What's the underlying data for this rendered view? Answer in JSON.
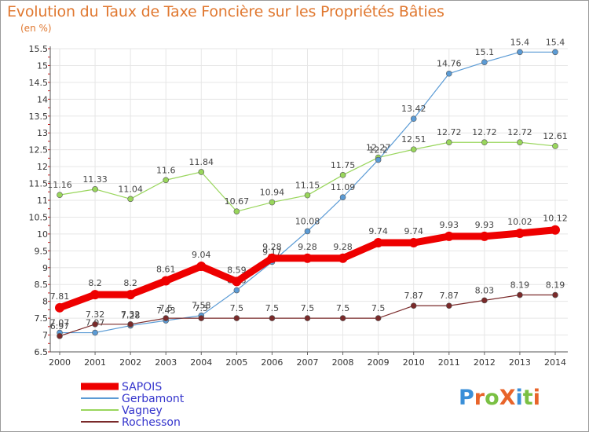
{
  "title": "Evolution du Taux de Taxe Foncière sur les Propriétés Bâties",
  "unit": "(en %)",
  "logo": {
    "text": "ProXiti",
    "letter_colors": [
      "#3a8fd8",
      "#e8642a",
      "#7ac043",
      "#e8642a",
      "#3a8fd8",
      "#7ac043",
      "#e8642a"
    ]
  },
  "chart_data": {
    "type": "line",
    "x": [
      "2000",
      "2001",
      "2002",
      "2003",
      "2004",
      "2005",
      "2006",
      "2007",
      "2008",
      "2009",
      "2010",
      "2011",
      "2012",
      "2013",
      "2014"
    ],
    "ylim": [
      6.5,
      15.5
    ],
    "yticks": [
      "6.5",
      "7",
      "7.5",
      "8",
      "8.5",
      "9",
      "9.5",
      "10",
      "10.5",
      "11",
      "11.5",
      "12",
      "12.5",
      "13",
      "13.5",
      "14",
      "14.5",
      "15",
      "15.5"
    ],
    "grid": true,
    "legend_position": "bottom-left",
    "series": [
      {
        "name": "SAPOIS",
        "color": "#ee0000",
        "values": [
          7.81,
          8.2,
          8.2,
          8.61,
          9.04,
          8.59,
          9.28,
          9.28,
          9.28,
          9.74,
          9.74,
          9.93,
          9.93,
          10.02,
          10.12
        ],
        "labels": [
          "7.81",
          "8.2",
          "8.2",
          "8.61",
          "9.04",
          "8.59",
          "9.28",
          "9.28",
          "9.28",
          "9.74",
          "9.74",
          "9.93",
          "9.93",
          "10.02",
          "10.12"
        ]
      },
      {
        "name": "Gerbamont",
        "color": "#5b9bd5",
        "values": [
          7.07,
          7.07,
          7.28,
          7.43,
          7.58,
          8.33,
          9.17,
          10.08,
          11.09,
          12.2,
          13.42,
          14.76,
          15.1,
          15.4,
          15.4
        ],
        "labels": [
          "7.07",
          "7.07",
          "7.28",
          "7.43",
          "7.58",
          "8.33",
          "9.17",
          "10.08",
          "11.09",
          "12.2",
          "13.42",
          "14.76",
          "15.1",
          "15.4",
          "15.4"
        ]
      },
      {
        "name": "Vagney",
        "color": "#99d65c",
        "values": [
          11.16,
          11.33,
          11.04,
          11.6,
          11.84,
          10.67,
          10.94,
          11.15,
          11.75,
          12.27,
          12.51,
          12.72,
          12.72,
          12.72,
          12.61
        ],
        "labels": [
          "11.16",
          "11.33",
          "11.04",
          "11.6",
          "11.84",
          "10.67",
          "10.94",
          "11.15",
          "11.75",
          "12.27",
          "12.51",
          "12.72",
          "12.72",
          "12.72",
          "12.61"
        ]
      },
      {
        "name": "Rochesson",
        "color": "#7a2a2a",
        "values": [
          6.97,
          7.32,
          7.32,
          7.5,
          7.5,
          7.5,
          7.5,
          7.5,
          7.5,
          7.5,
          7.87,
          7.87,
          8.03,
          8.19,
          8.19
        ],
        "labels": [
          "6.97",
          "7.32",
          "7.32",
          "7.5",
          "7.5",
          "7.5",
          "7.5",
          "7.5",
          "7.5",
          "7.5",
          "7.87",
          "7.87",
          "8.03",
          "8.19",
          "8.19"
        ]
      }
    ]
  }
}
